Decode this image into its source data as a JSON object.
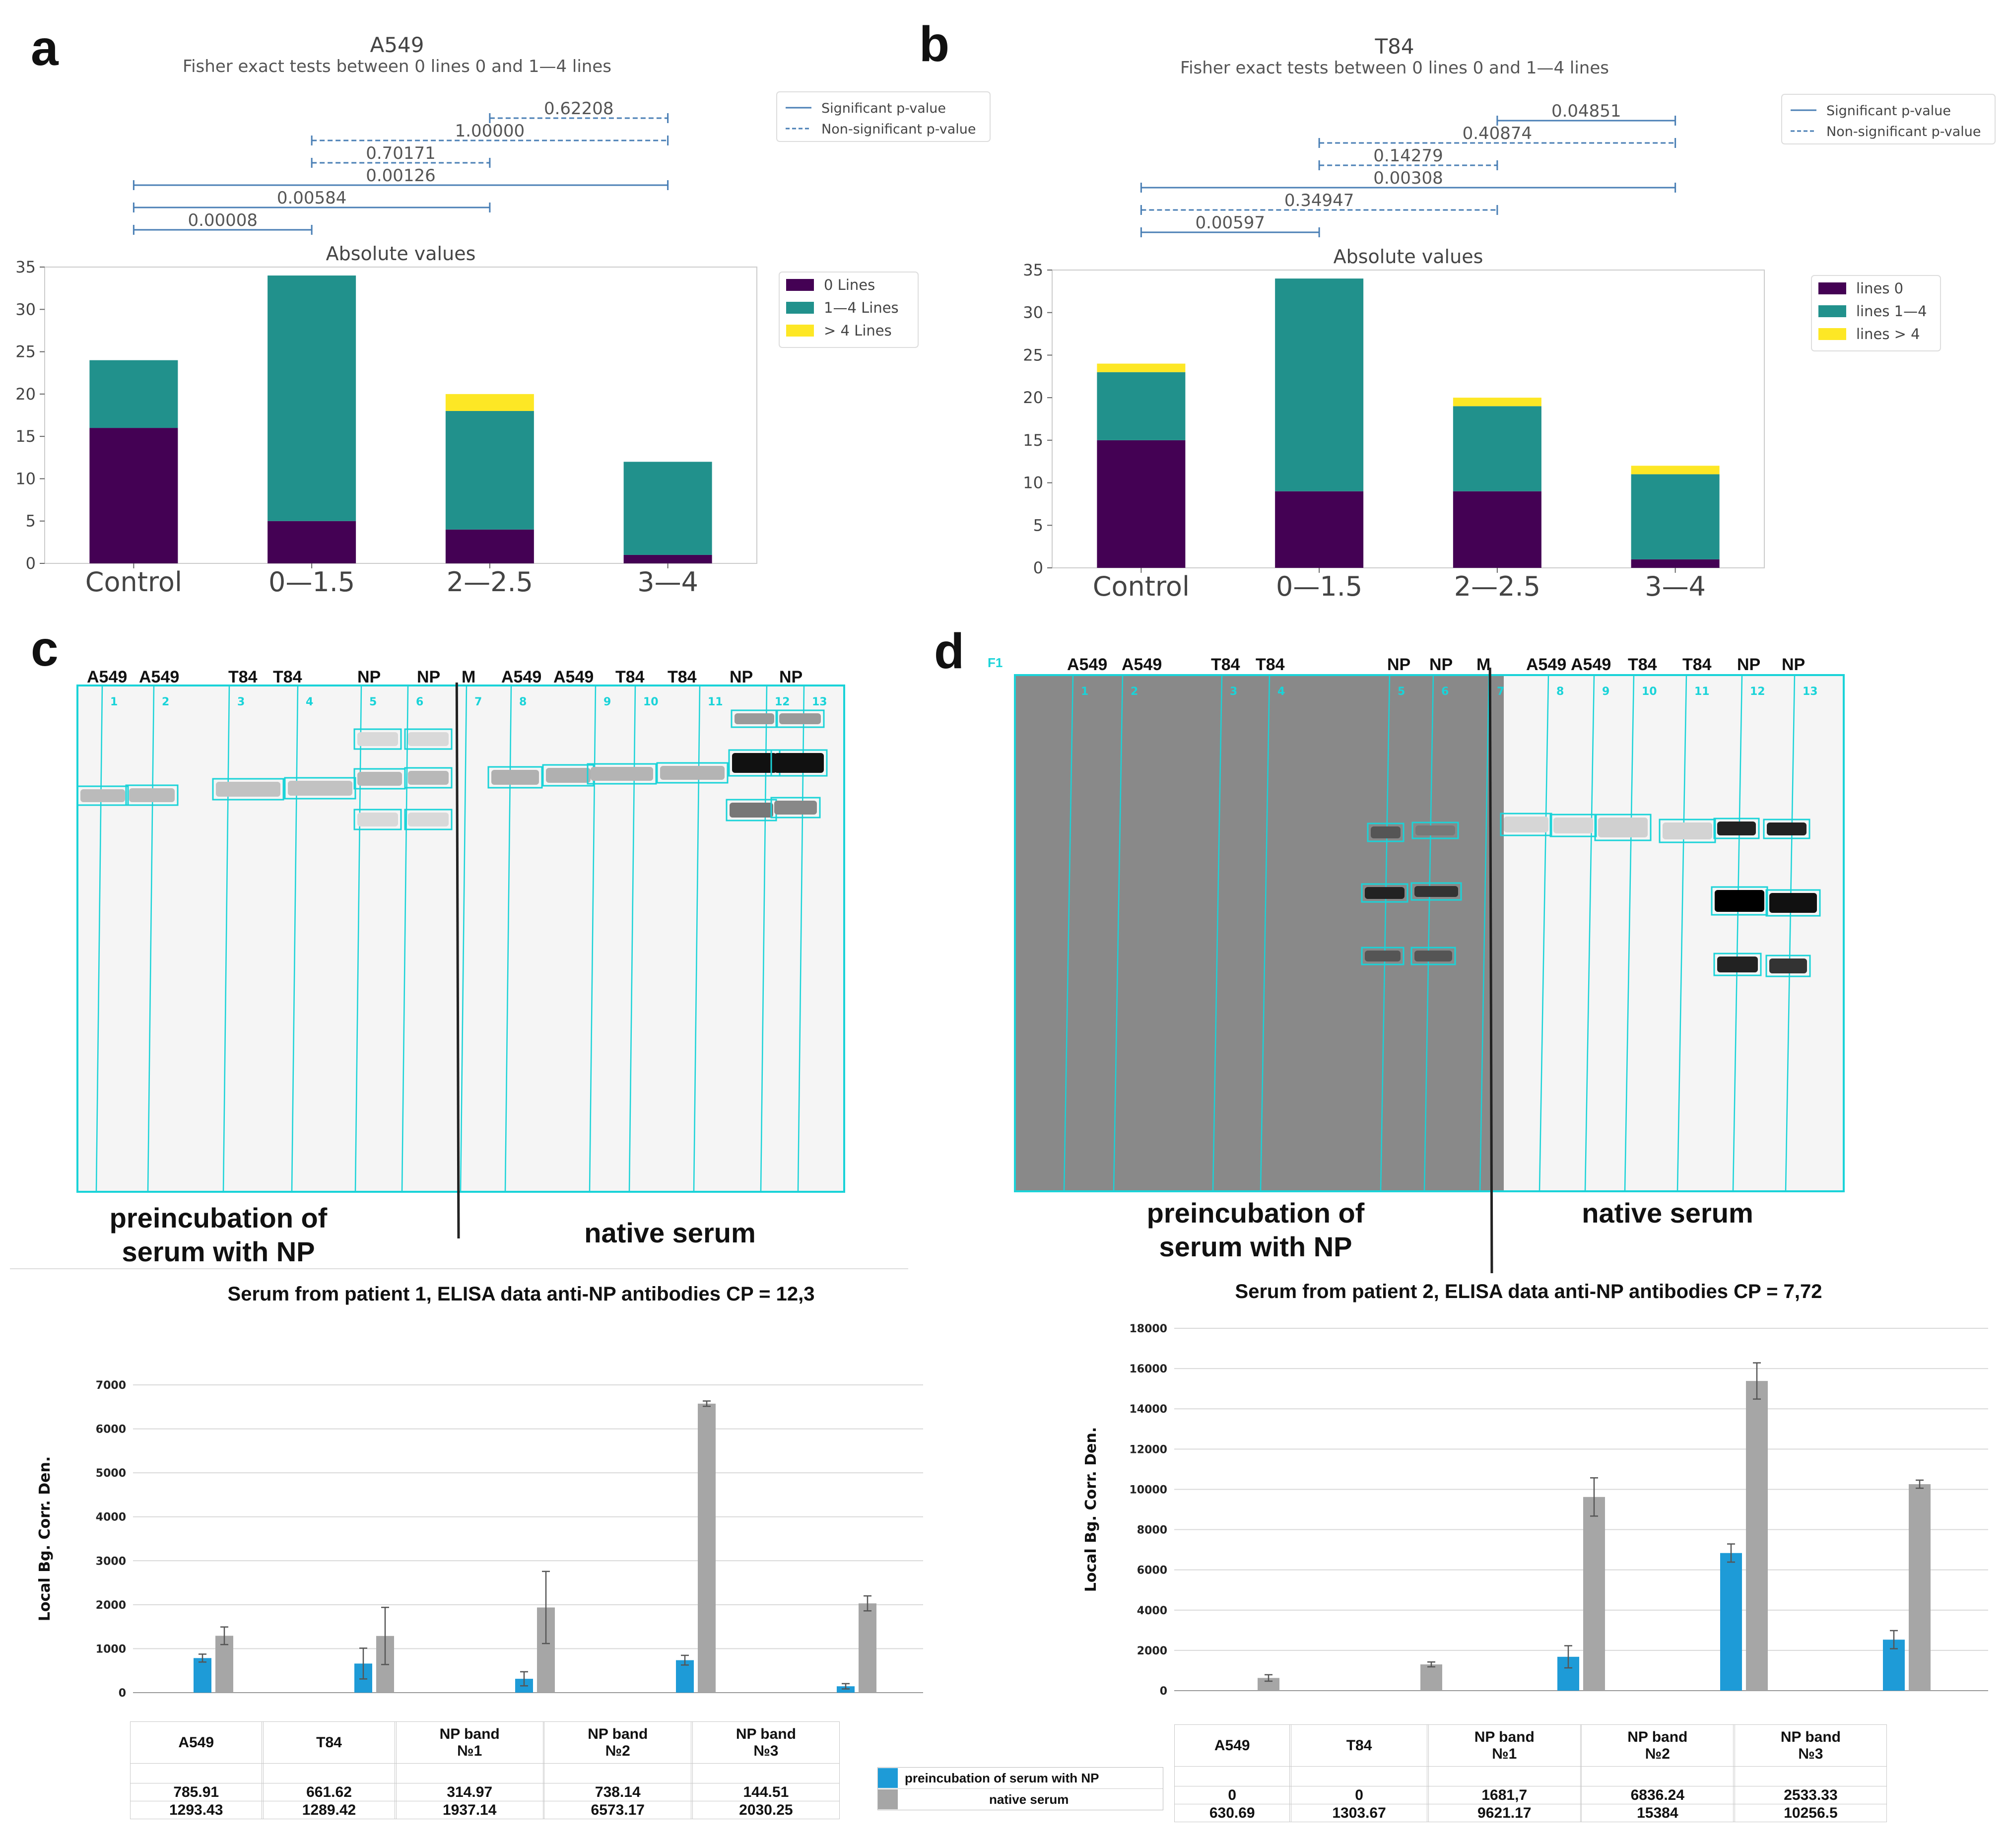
{
  "panels": {
    "a": "a",
    "b": "b",
    "c": "c",
    "d": "d"
  },
  "chart_data": [
    {
      "id": "a",
      "type": "bar",
      "stacked": true,
      "title": "A549",
      "subtitle": "Fisher exact tests between 0 lines 0 and 1—4 lines",
      "plot_title": "Absolute values",
      "categories": [
        "Control",
        "0—1.5",
        "2—2.5",
        "3—4"
      ],
      "series": [
        {
          "name": "0 Lines",
          "values": [
            16,
            5,
            4,
            1
          ],
          "color": "#440154"
        },
        {
          "name": "1—4 Lines",
          "values": [
            8,
            29,
            14,
            11
          ],
          "color": "#21918c"
        },
        {
          "name": "> 4 Lines",
          "values": [
            0,
            0,
            2,
            0
          ],
          "color": "#fde725"
        }
      ],
      "ylim": [
        0,
        35
      ],
      "yticks": [
        "0",
        "5",
        "10",
        "15",
        "20",
        "25",
        "30",
        "35"
      ],
      "legend_position": "right",
      "pvalue_legend": {
        "significant": "Significant p-value",
        "nonsignificant": "Non-significant p-value"
      },
      "brackets": [
        {
          "from": 2,
          "to": 3,
          "label": "0.62208",
          "significant": false
        },
        {
          "from": 1,
          "to": 3,
          "label": "1.00000",
          "significant": false
        },
        {
          "from": 1,
          "to": 2,
          "label": "0.70171",
          "significant": false
        },
        {
          "from": 0,
          "to": 3,
          "label": "0.00126",
          "significant": true
        },
        {
          "from": 0,
          "to": 2,
          "label": "0.00584",
          "significant": true
        },
        {
          "from": 0,
          "to": 1,
          "label": "0.00008",
          "significant": true
        }
      ]
    },
    {
      "id": "b",
      "type": "bar",
      "stacked": true,
      "title": "T84",
      "subtitle": "Fisher exact tests between 0 lines 0 and 1—4 lines",
      "plot_title": "Absolute values",
      "categories": [
        "Control",
        "0—1.5",
        "2—2.5",
        "3—4"
      ],
      "series": [
        {
          "name": "lines 0",
          "values": [
            15,
            9,
            9,
            1
          ],
          "color": "#440154"
        },
        {
          "name": "lines 1—4",
          "values": [
            8,
            25,
            10,
            10
          ],
          "color": "#21918c"
        },
        {
          "name": "lines > 4",
          "values": [
            1,
            0,
            1,
            1
          ],
          "color": "#fde725"
        }
      ],
      "ylim": [
        0,
        35
      ],
      "yticks": [
        "0",
        "5",
        "10",
        "15",
        "20",
        "25",
        "30",
        "35"
      ],
      "legend_position": "right",
      "pvalue_legend": {
        "significant": "Significant p-value",
        "nonsignificant": "Non-significant p-value"
      },
      "brackets": [
        {
          "from": 2,
          "to": 3,
          "label": "0.04851",
          "significant": true
        },
        {
          "from": 1,
          "to": 3,
          "label": "0.40874",
          "significant": false
        },
        {
          "from": 1,
          "to": 2,
          "label": "0.14279",
          "significant": false
        },
        {
          "from": 0,
          "to": 3,
          "label": "0.00308",
          "significant": true
        },
        {
          "from": 0,
          "to": 2,
          "label": "0.34947",
          "significant": false
        },
        {
          "from": 0,
          "to": 1,
          "label": "0.00597",
          "significant": true
        }
      ]
    },
    {
      "id": "elisa1",
      "type": "bar",
      "title": "Serum from patient 1, ELISA data anti-NP antibodies CP = 12,3",
      "ylabel": "Local Bg. Corr. Den.",
      "categories": [
        "A549",
        "T84",
        "NP band\n№1",
        "NP band\n№2",
        "NP band\n№3"
      ],
      "series": [
        {
          "name": "preincubation of serum with NP",
          "values": [
            785.91,
            661.62,
            314.97,
            738.14,
            144.51
          ],
          "labels": [
            "785.91",
            "661.62",
            "314.97",
            "738.14",
            "144.51"
          ],
          "errors": [
            90,
            350,
            160,
            110,
            60
          ],
          "color": "#1e9bd7"
        },
        {
          "name": "native serum",
          "values": [
            1293.43,
            1289.42,
            1937.14,
            6573.17,
            2030.25
          ],
          "labels": [
            "1293.43",
            "1289.42",
            "1937.14",
            "6573.17",
            "2030.25"
          ],
          "errors": [
            200,
            650,
            820,
            60,
            170
          ],
          "color": "#a6a6a6"
        }
      ],
      "ylim": [
        0,
        7000
      ],
      "yticks": [
        "0",
        "1000",
        "2000",
        "3000",
        "4000",
        "5000",
        "6000",
        "7000"
      ]
    },
    {
      "id": "elisa2",
      "type": "bar",
      "title": "Serum from patient 2, ELISA data anti-NP antibodies CP = 7,72",
      "ylabel": "Local Bg. Corr. Den.",
      "categories": [
        "A549",
        "T84",
        "NP band\n№1",
        "NP band\n№2",
        "NP band\n№3"
      ],
      "series": [
        {
          "name": "preincubation of serum with NP",
          "values": [
            0,
            0,
            1681.7,
            6836.24,
            2533.33
          ],
          "labels": [
            "0",
            "0",
            "1681,7",
            "6836.24",
            "2533.33"
          ],
          "errors": [
            0,
            0,
            550,
            450,
            450
          ],
          "color": "#1e9bd7"
        },
        {
          "name": "native serum",
          "values": [
            630.69,
            1303.67,
            9621.17,
            15384,
            10256.5
          ],
          "labels": [
            "630.69",
            "1303.67",
            "9621.17",
            "15384",
            "10256.5"
          ],
          "errors": [
            160,
            120,
            950,
            900,
            200
          ],
          "color": "#a6a6a6"
        }
      ],
      "ylim": [
        0,
        18000
      ],
      "yticks": [
        "0",
        "2000",
        "4000",
        "6000",
        "8000",
        "10000",
        "12000",
        "14000",
        "16000",
        "18000"
      ]
    }
  ],
  "blots": {
    "c": {
      "top_labels": [
        "A549",
        "A549",
        "T84",
        "T84",
        "NP",
        "NP",
        "M",
        "A549",
        "A549",
        "T84",
        "T84",
        "NP",
        "NP"
      ],
      "lane_numbers": [
        "1",
        "2",
        "3",
        "4",
        "5",
        "6",
        "7",
        "8",
        "9",
        "10",
        "11",
        "12",
        "13"
      ],
      "left_condition": "preincubation of serum with NP",
      "right_condition": "native serum"
    },
    "d": {
      "frame_tag": "F1",
      "top_labels": [
        "A549",
        "A549",
        "T84",
        "T84",
        "NP",
        "NP",
        "M",
        "A549",
        "A549",
        "T84",
        "T84",
        "NP",
        "NP"
      ],
      "lane_numbers": [
        "1",
        "2",
        "3",
        "4",
        "5",
        "6",
        "7",
        "8",
        "9",
        "10",
        "11",
        "12",
        "13"
      ],
      "left_condition": "preincubation of serum with NP",
      "right_condition": "native serum"
    }
  },
  "elisa_legend": {
    "pre": "preincubation of serum with NP",
    "native": "native serum"
  }
}
